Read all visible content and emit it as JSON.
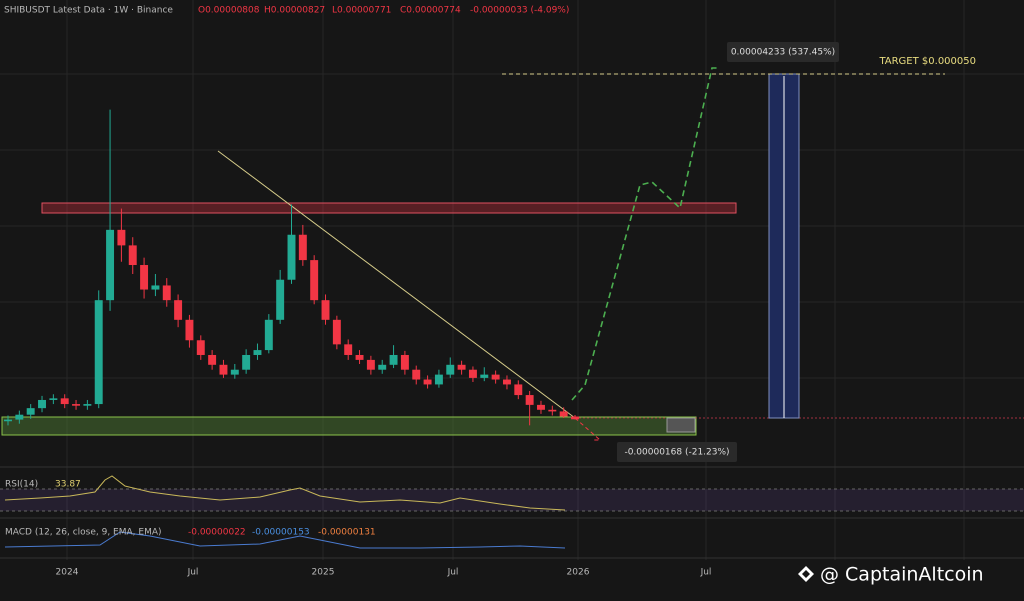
{
  "header": {
    "symbol": "SHIBUSDT Latest Data · 1W · Binance",
    "open": "O0.00000808",
    "high": "H0.00000827",
    "low": "L0.00000771",
    "close": "C0.00000774",
    "change": "-0.00000033 (-4.09%)"
  },
  "chart_data": {
    "type": "candlestick",
    "up_color": "#22ab94",
    "down_color": "#f23645",
    "ylim": [
      2.15e-06,
      5.9e-05
    ],
    "open": [
      7.5e-06,
      7.7e-06,
      8.3e-06,
      9.1e-06,
      1.01e-05,
      1.03e-05,
      9.6e-06,
      9.4e-06,
      9.6e-06,
      2.23e-05,
      3.09e-05,
      2.9e-05,
      2.66e-05,
      2.36e-05,
      2.41e-05,
      2.23e-05,
      1.99e-05,
      1.74e-05,
      1.56e-05,
      1.44e-05,
      1.32e-05,
      1.38e-05,
      1.56e-05,
      1.62e-05,
      1.99e-05,
      2.48e-05,
      3.03e-05,
      2.72e-05,
      2.23e-05,
      1.99e-05,
      1.69e-05,
      1.56e-05,
      1.5e-05,
      1.38e-05,
      1.44e-05,
      1.56e-05,
      1.38e-05,
      1.26e-05,
      1.2e-05,
      1.32e-05,
      1.44e-05,
      1.38e-05,
      1.28e-05,
      1.32e-05,
      1.26e-05,
      1.2e-05,
      1.07e-05,
      9.5e-06,
      8.9e-06,
      8.7e-06,
      8.08e-06
    ],
    "high": [
      8.2e-06,
      8.8e-06,
      9.6e-06,
      1.06e-05,
      1.08e-05,
      1.08e-05,
      1.01e-05,
      1.01e-05,
      2.35e-05,
      4.56e-05,
      3.35e-05,
      3e-05,
      2.75e-05,
      2.55e-05,
      2.5e-05,
      2.3e-05,
      2.05e-05,
      1.8e-05,
      1.62e-05,
      1.5e-05,
      1.45e-05,
      1.63e-05,
      1.7e-05,
      2.06e-05,
      2.6e-05,
      3.4e-05,
      3.15e-05,
      2.78e-05,
      2.3e-05,
      2.04e-05,
      1.75e-05,
      1.62e-05,
      1.55e-05,
      1.5e-05,
      1.68e-05,
      1.61e-05,
      1.43e-05,
      1.31e-05,
      1.38e-05,
      1.53e-05,
      1.49e-05,
      1.42e-05,
      1.41e-05,
      1.37e-05,
      1.31e-05,
      1.25e-05,
      1.12e-05,
      1e-05,
      9.4e-06,
      9.2e-06,
      8.27e-06
    ],
    "low": [
      7e-06,
      7.2e-06,
      7.8e-06,
      8.6e-06,
      9.6e-06,
      9.1e-06,
      8.9e-06,
      8.9e-06,
      9.1e-06,
      2.1e-05,
      2.7e-05,
      2.55e-05,
      2.25e-05,
      2.28e-05,
      2.15e-05,
      1.9e-05,
      1.65e-05,
      1.5e-05,
      1.38e-05,
      1.28e-05,
      1.27e-05,
      1.33e-05,
      1.5e-05,
      1.58e-05,
      1.94e-05,
      2.43e-05,
      2.65e-05,
      2.18e-05,
      1.93e-05,
      1.63e-05,
      1.5e-05,
      1.45e-05,
      1.32e-05,
      1.33e-05,
      1.4e-05,
      1.32e-05,
      1.2e-05,
      1.15e-05,
      1.16e-05,
      1.28e-05,
      1.32e-05,
      1.23e-05,
      1.24e-05,
      1.21e-05,
      1.14e-05,
      1.02e-05,
      7e-06,
      8.4e-06,
      8.2e-06,
      7.9e-06,
      7.71e-06
    ],
    "close": [
      7.7e-06,
      8.3e-06,
      9.1e-06,
      1.01e-05,
      1.03e-05,
      9.6e-06,
      9.4e-06,
      9.6e-06,
      2.23e-05,
      3.09e-05,
      2.9e-05,
      2.66e-05,
      2.36e-05,
      2.41e-05,
      2.23e-05,
      1.99e-05,
      1.74e-05,
      1.56e-05,
      1.44e-05,
      1.32e-05,
      1.38e-05,
      1.56e-05,
      1.62e-05,
      1.99e-05,
      2.48e-05,
      3.03e-05,
      2.72e-05,
      2.23e-05,
      1.99e-05,
      1.69e-05,
      1.56e-05,
      1.5e-05,
      1.38e-05,
      1.44e-05,
      1.56e-05,
      1.38e-05,
      1.26e-05,
      1.2e-05,
      1.32e-05,
      1.44e-05,
      1.38e-05,
      1.28e-05,
      1.32e-05,
      1.26e-05,
      1.2e-05,
      1.07e-05,
      9.5e-06,
      8.9e-06,
      8.7e-06,
      8.08e-06,
      7.74e-06
    ],
    "x_labels": [
      "2024",
      "Jul",
      "2025",
      "Jul",
      "2026",
      "Jul"
    ],
    "annotations": {
      "gain": "0.00004233 (537.45%)",
      "target": "TARGET $0.000050",
      "loss": "-0.00000168 (-21.23%)"
    }
  },
  "indicators": {
    "rsi_label": "RSI(14)",
    "rsi_value": "33.87",
    "macd_label": "MACD (12, 26, close, 9, EMA, EMA)",
    "macd_hist": "-0.00000022",
    "macd_line": "-0.00000153",
    "macd_signal": "-0.00000131"
  },
  "watermark": "@ CaptainAltcoin"
}
